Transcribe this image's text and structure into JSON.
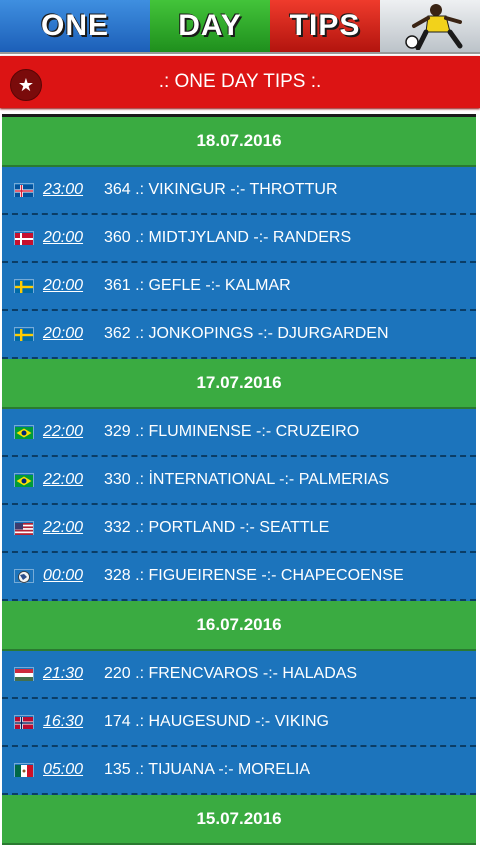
{
  "banner": {
    "word1": "ONE",
    "word2": "DAY",
    "word3": "TIPS"
  },
  "titlebar": {
    "title": ".: ONE DAY TIPS :."
  },
  "groups": [
    {
      "date": "18.07.2016",
      "matches": [
        {
          "flag": "iceland-flag",
          "time": "23:00",
          "desc": "364 .: VIKINGUR -:- THROTTUR"
        },
        {
          "flag": "denmark-flag",
          "time": "20:00",
          "desc": "360 .: MIDTJYLAND -:- RANDERS"
        },
        {
          "flag": "sweden-flag",
          "time": "20:00",
          "desc": "361 .: GEFLE -:- KALMAR"
        },
        {
          "flag": "sweden-flag",
          "time": "20:00",
          "desc": "362 .: JONKOPINGS -:- DJURGARDEN"
        }
      ]
    },
    {
      "date": "17.07.2016",
      "matches": [
        {
          "flag": "brazil-flag",
          "time": "22:00",
          "desc": "329 .: FLUMINENSE -:- CRUZEIRO"
        },
        {
          "flag": "brazil-flag",
          "time": "22:00",
          "desc": "330 .: İNTERNATIONAL -:- PALMERIAS"
        },
        {
          "flag": "usa-flag",
          "time": "22:00",
          "desc": "332 .: PORTLAND -:- SEATTLE"
        },
        {
          "flag": "ball-icon",
          "time": "00:00",
          "desc": "328 .: FIGUEIRENSE -:- CHAPECOENSE"
        }
      ]
    },
    {
      "date": "16.07.2016",
      "matches": [
        {
          "flag": "hungary-flag",
          "time": "21:30",
          "desc": "220 .: FRENCVAROS -:- HALADAS"
        },
        {
          "flag": "norway-flag",
          "time": "16:30",
          "desc": "174 .: HAUGESUND -:- VIKING"
        },
        {
          "flag": "mexico-flag",
          "time": "05:00",
          "desc": "135 .: TIJUANA -:- MORELIA"
        }
      ]
    },
    {
      "date": "15.07.2016",
      "matches": []
    }
  ]
}
